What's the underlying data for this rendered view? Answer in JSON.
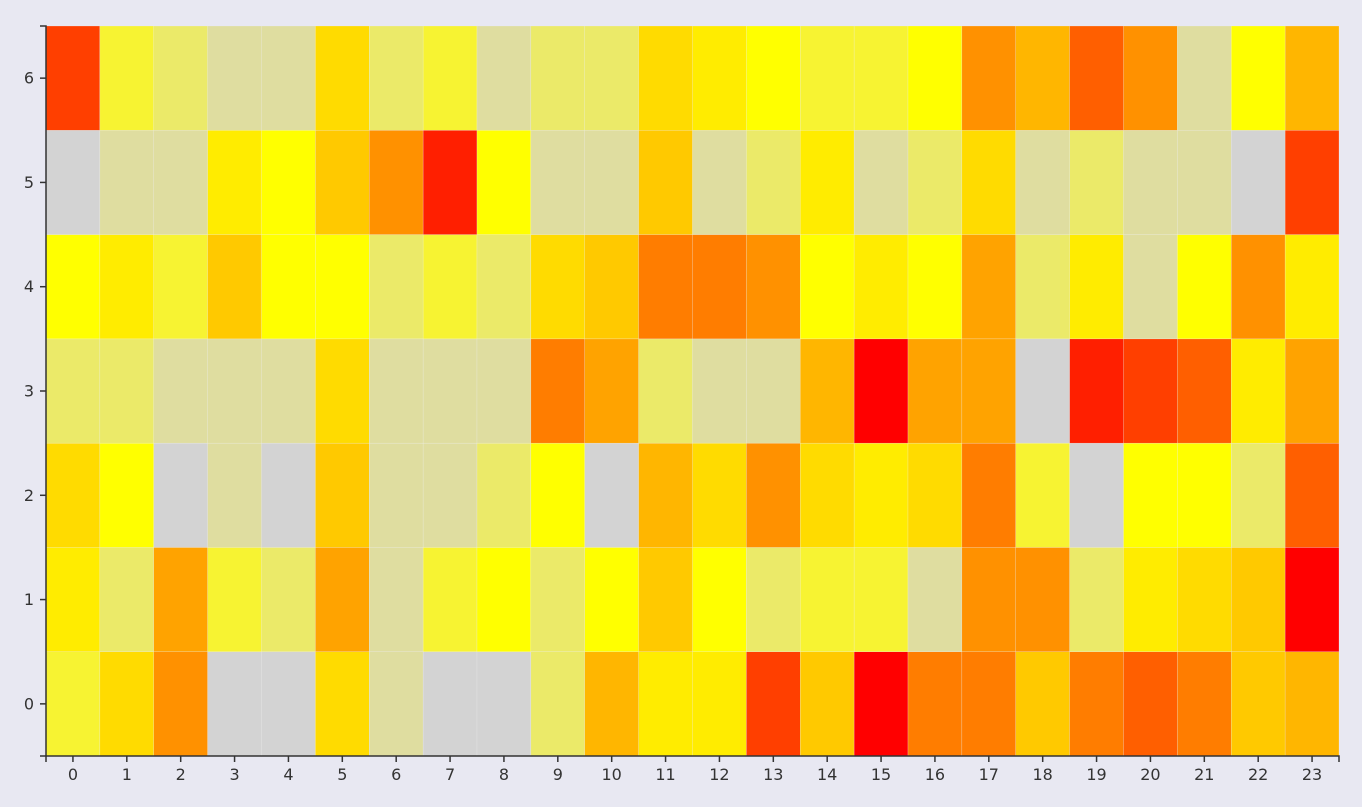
{
  "chart_data": {
    "type": "heatmap",
    "title": "",
    "xlabel": "",
    "ylabel": "",
    "x_categories": [
      "0",
      "1",
      "2",
      "3",
      "4",
      "5",
      "6",
      "7",
      "8",
      "9",
      "10",
      "11",
      "12",
      "13",
      "14",
      "15",
      "16",
      "17",
      "18",
      "19",
      "20",
      "21",
      "22",
      "23"
    ],
    "y_categories": [
      "0",
      "1",
      "2",
      "3",
      "4",
      "5",
      "6"
    ],
    "color_scale": {
      "palette": [
        "#d3d3d3",
        "#dfdda0",
        "#ebea69",
        "#f7f332",
        "#ffff00",
        "#ffec00",
        "#ffdb00",
        "#ffc900",
        "#ffb600",
        "#ffa300",
        "#ff9100",
        "#ff7d00",
        "#ff5f00",
        "#ff3f00",
        "#ff1f00",
        "#ff0000"
      ],
      "min": 0,
      "max": 15
    },
    "values": [
      [
        3,
        6,
        10,
        0,
        0,
        6,
        1,
        0,
        0,
        2,
        8,
        5,
        5,
        13,
        7,
        15,
        11,
        11,
        7,
        11,
        12,
        11,
        7,
        8
      ],
      [
        5,
        2,
        9,
        3,
        2,
        9,
        1,
        3,
        4,
        2,
        4,
        7,
        4,
        2,
        3,
        3,
        1,
        10,
        10,
        2,
        5,
        6,
        7,
        15
      ],
      [
        6,
        4,
        0,
        1,
        0,
        7,
        1,
        1,
        2,
        4,
        0,
        8,
        6,
        10,
        6,
        5,
        6,
        11,
        3,
        0,
        4,
        4,
        2,
        12
      ],
      [
        2,
        2,
        1,
        1,
        1,
        6,
        1,
        1,
        1,
        11,
        9,
        2,
        1,
        1,
        8,
        15,
        9,
        9,
        0,
        14,
        13,
        12,
        5,
        9
      ],
      [
        4,
        5,
        3,
        7,
        4,
        4,
        2,
        3,
        2,
        6,
        7,
        11,
        11,
        10,
        4,
        5,
        4,
        9,
        2,
        5,
        1,
        4,
        10,
        5
      ],
      [
        0,
        1,
        1,
        5,
        4,
        7,
        10,
        14,
        4,
        1,
        1,
        7,
        1,
        2,
        5,
        1,
        2,
        6,
        1,
        2,
        1,
        1,
        0,
        13
      ],
      [
        13,
        3,
        2,
        1,
        1,
        6,
        2,
        3,
        1,
        2,
        2,
        6,
        5,
        4,
        3,
        3,
        4,
        10,
        8,
        12,
        10,
        1,
        4,
        8
      ]
    ],
    "grid": false,
    "legend": "none"
  }
}
